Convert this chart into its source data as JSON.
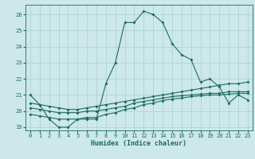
{
  "x": [
    0,
    1,
    2,
    3,
    4,
    5,
    6,
    7,
    8,
    9,
    10,
    11,
    12,
    13,
    14,
    15,
    16,
    17,
    18,
    19,
    20,
    21,
    22,
    23
  ],
  "line1": [
    21.0,
    20.4,
    19.5,
    19.0,
    19.0,
    19.5,
    19.5,
    19.5,
    21.7,
    23.0,
    25.5,
    25.5,
    26.2,
    26.0,
    25.5,
    24.2,
    23.5,
    23.2,
    21.8,
    22.0,
    21.5,
    20.5,
    21.0,
    20.7
  ],
  "line2": [
    20.5,
    20.4,
    20.3,
    20.2,
    20.1,
    20.1,
    20.2,
    20.3,
    20.4,
    20.5,
    20.6,
    20.7,
    20.8,
    20.9,
    21.0,
    21.1,
    21.2,
    21.3,
    21.4,
    21.5,
    21.6,
    21.7,
    21.7,
    21.8
  ],
  "line3": [
    20.2,
    20.1,
    20.0,
    19.9,
    19.9,
    19.9,
    20.0,
    20.0,
    20.1,
    20.2,
    20.3,
    20.5,
    20.6,
    20.7,
    20.8,
    20.9,
    20.95,
    21.0,
    21.05,
    21.1,
    21.1,
    21.2,
    21.2,
    21.2
  ],
  "line4": [
    19.8,
    19.7,
    19.6,
    19.5,
    19.5,
    19.5,
    19.6,
    19.6,
    19.8,
    19.9,
    20.1,
    20.2,
    20.4,
    20.5,
    20.65,
    20.75,
    20.8,
    20.9,
    20.95,
    21.0,
    21.0,
    21.05,
    21.1,
    21.1
  ],
  "line_color": "#1a6b5e",
  "bg_color": "#cde8e8",
  "grid_color": "#aacfcf",
  "xlabel": "Humidex (Indice chaleur)",
  "ylim": [
    18.8,
    26.6
  ],
  "xlim": [
    -0.5,
    23.5
  ],
  "yticks": [
    19,
    20,
    21,
    22,
    23,
    24,
    25,
    26
  ],
  "xticks": [
    0,
    1,
    2,
    3,
    4,
    5,
    6,
    7,
    8,
    9,
    10,
    11,
    12,
    13,
    14,
    15,
    16,
    17,
    18,
    19,
    20,
    21,
    22,
    23
  ]
}
